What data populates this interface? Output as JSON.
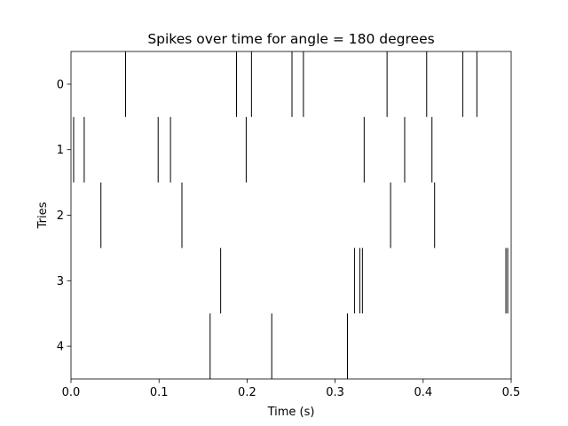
{
  "chart_data": {
    "type": "eventplot",
    "title": "Spikes over time for angle = 180 degrees",
    "xlabel": "Time (s)",
    "ylabel": "Tries",
    "xlim": [
      0.0,
      0.5
    ],
    "ylim": [
      4.5,
      -0.5
    ],
    "x_ticks": [
      0.0,
      0.1,
      0.2,
      0.3,
      0.4,
      0.5
    ],
    "x_tick_labels": [
      "0.0",
      "0.1",
      "0.2",
      "0.3",
      "0.4",
      "0.5"
    ],
    "y_ticks": [
      0,
      1,
      2,
      3,
      4
    ],
    "y_tick_labels": [
      "0",
      "1",
      "2",
      "3",
      "4"
    ],
    "grid": false,
    "line_color": "#000000",
    "series": [
      {
        "try": 0,
        "spike_times": [
          0.062,
          0.188,
          0.205,
          0.251,
          0.264,
          0.359,
          0.404,
          0.445,
          0.461
        ]
      },
      {
        "try": 1,
        "spike_times": [
          0.003,
          0.015,
          0.099,
          0.113,
          0.199,
          0.333,
          0.379,
          0.41
        ]
      },
      {
        "try": 2,
        "spike_times": [
          0.034,
          0.126,
          0.363,
          0.413
        ]
      },
      {
        "try": 3,
        "spike_times": [
          0.17,
          0.322,
          0.328,
          0.331,
          0.494,
          0.496
        ]
      },
      {
        "try": 4,
        "spike_times": [
          0.158,
          0.228,
          0.314
        ]
      }
    ]
  }
}
